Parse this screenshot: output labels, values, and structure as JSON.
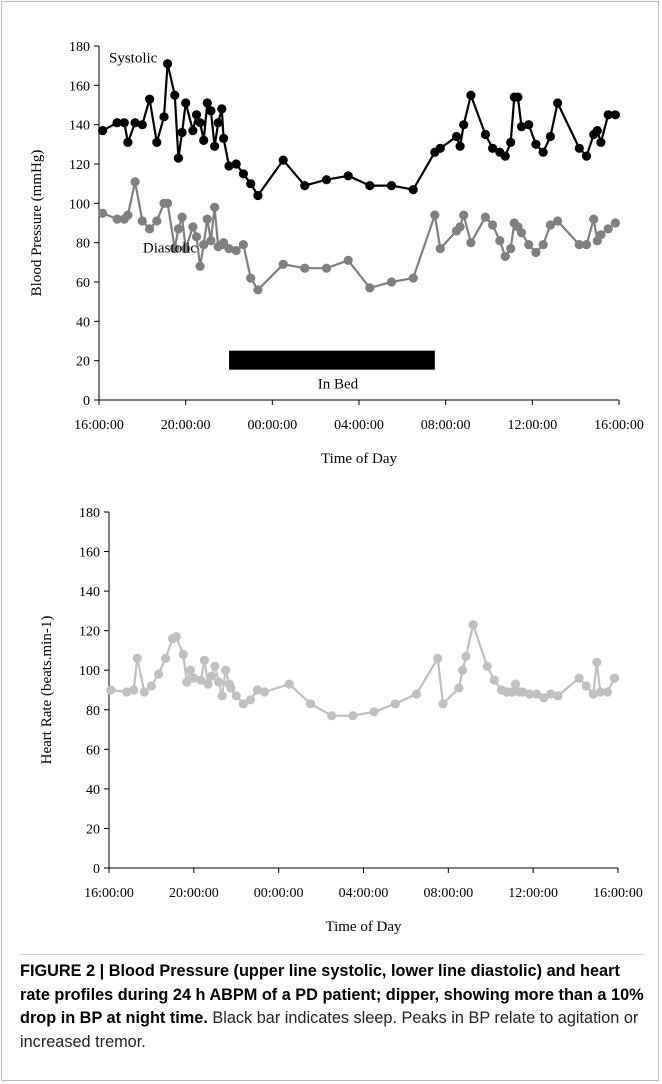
{
  "chart_data": [
    {
      "type": "line",
      "ylabel": "Blood Pressure (mmHg)",
      "xlabel": "Time of Day",
      "ylim": [
        0,
        180
      ],
      "yticks": [
        0,
        20,
        40,
        60,
        80,
        100,
        120,
        140,
        160,
        180
      ],
      "xlim": [
        "16:00:00",
        "16:00:00 (+1 day)"
      ],
      "xticks": [
        "16:00:00",
        "20:00:00",
        "00:00:00",
        "04:00:00",
        "08:00:00",
        "12:00:00",
        "16:00:00"
      ],
      "grid": false,
      "annotations": {
        "systolic": "Systolic",
        "diastolic": "Diastolic",
        "bar": "In Bed"
      },
      "in_bed": {
        "start": "22:00",
        "end": "07:30",
        "level": 20
      },
      "series": [
        {
          "name": "Systolic",
          "color": "#000000",
          "x": [
            "16:10",
            "16:50",
            "17:10",
            "17:20",
            "17:40",
            "18:00",
            "18:20",
            "18:40",
            "19:00",
            "19:10",
            "19:30",
            "19:40",
            "19:50",
            "20:00",
            "20:20",
            "20:30",
            "20:40",
            "20:50",
            "21:00",
            "21:10",
            "21:20",
            "21:30",
            "21:40",
            "21:45",
            "22:00",
            "22:20",
            "22:40",
            "23:00",
            "23:20",
            "00:30",
            "01:30",
            "02:30",
            "03:30",
            "04:30",
            "05:30",
            "06:30",
            "07:30",
            "07:45",
            "08:30",
            "08:40",
            "08:50",
            "09:10",
            "09:50",
            "10:10",
            "10:30",
            "10:45",
            "11:00",
            "11:10",
            "11:20",
            "11:30",
            "11:50",
            "12:10",
            "12:30",
            "12:50",
            "13:10",
            "14:10",
            "14:30",
            "14:50",
            "15:00",
            "15:10",
            "15:30",
            "15:50"
          ],
          "y": [
            137,
            141,
            141,
            131,
            141,
            140,
            153,
            131,
            144,
            171,
            155,
            123,
            136,
            151,
            137,
            145,
            141,
            132,
            151,
            147,
            129,
            141,
            148,
            133,
            119,
            120,
            115,
            110,
            104,
            122,
            109,
            112,
            114,
            109,
            109,
            107,
            126,
            128,
            134,
            129,
            140,
            155,
            135,
            128,
            126,
            124,
            131,
            154,
            154,
            139,
            140,
            130,
            126,
            134,
            151,
            128,
            124,
            135,
            137,
            131,
            145,
            145
          ]
        },
        {
          "name": "Diastolic",
          "color": "#808080",
          "x": [
            "16:10",
            "16:50",
            "17:10",
            "17:20",
            "17:40",
            "18:00",
            "18:20",
            "18:40",
            "19:00",
            "19:10",
            "19:30",
            "19:40",
            "19:50",
            "20:00",
            "20:20",
            "20:30",
            "20:40",
            "20:50",
            "21:00",
            "21:10",
            "21:20",
            "21:30",
            "21:40",
            "21:45",
            "22:00",
            "22:20",
            "22:40",
            "23:00",
            "23:20",
            "00:30",
            "01:30",
            "02:30",
            "03:30",
            "04:30",
            "05:30",
            "06:30",
            "07:30",
            "07:45",
            "08:30",
            "08:40",
            "08:50",
            "09:10",
            "09:50",
            "10:10",
            "10:30",
            "10:45",
            "11:00",
            "11:10",
            "11:20",
            "11:30",
            "11:50",
            "12:10",
            "12:30",
            "12:50",
            "13:10",
            "14:10",
            "14:30",
            "14:50",
            "15:00",
            "15:10",
            "15:30",
            "15:50"
          ],
          "y": [
            95,
            92,
            92,
            94,
            111,
            91,
            87,
            91,
            100,
            100,
            77,
            87,
            93,
            77,
            88,
            83,
            68,
            79,
            92,
            81,
            98,
            78,
            79,
            80,
            77,
            76,
            79,
            62,
            56,
            69,
            67,
            67,
            71,
            57,
            60,
            62,
            94,
            77,
            86,
            88,
            94,
            80,
            93,
            89,
            81,
            73,
            77,
            90,
            88,
            85,
            79,
            75,
            79,
            89,
            91,
            79,
            79,
            92,
            81,
            84,
            87,
            90
          ]
        }
      ]
    },
    {
      "type": "line",
      "ylabel": "Heart Rate (beats.min-1)",
      "xlabel": "Time of Day",
      "ylim": [
        0,
        180
      ],
      "yticks": [
        0,
        20,
        40,
        60,
        80,
        100,
        120,
        140,
        160,
        180
      ],
      "xlim": [
        "16:00:00",
        "16:00:00 (+1 day)"
      ],
      "xticks": [
        "16:00:00",
        "20:00:00",
        "00:00:00",
        "04:00:00",
        "08:00:00",
        "12:00:00",
        "16:00:00"
      ],
      "grid": false,
      "series": [
        {
          "name": "",
          "color": "#c0c0c0",
          "x": [
            "16:05",
            "16:50",
            "17:10",
            "17:20",
            "17:40",
            "18:00",
            "18:20",
            "18:40",
            "19:00",
            "19:10",
            "19:30",
            "19:40",
            "19:50",
            "20:00",
            "20:20",
            "20:30",
            "20:40",
            "20:50",
            "21:00",
            "21:10",
            "21:20",
            "21:30",
            "21:40",
            "21:45",
            "22:00",
            "22:20",
            "22:40",
            "23:00",
            "23:20",
            "00:30",
            "01:30",
            "02:30",
            "03:30",
            "04:30",
            "05:30",
            "06:30",
            "07:30",
            "07:45",
            "08:30",
            "08:40",
            "08:50",
            "09:10",
            "09:50",
            "10:10",
            "10:30",
            "10:45",
            "11:00",
            "11:10",
            "11:20",
            "11:30",
            "11:50",
            "12:10",
            "12:30",
            "12:50",
            "13:10",
            "14:10",
            "14:30",
            "14:50",
            "15:00",
            "15:10",
            "15:30",
            "15:50"
          ],
          "y": [
            90,
            89,
            90,
            106,
            89,
            92,
            98,
            106,
            116,
            117,
            108,
            94,
            100,
            96,
            95,
            105,
            93,
            97,
            102,
            94,
            87,
            100,
            93,
            91,
            87,
            83,
            85,
            90,
            89,
            93,
            83,
            77,
            77,
            79,
            83,
            88,
            106,
            83,
            91,
            100,
            107,
            123,
            102,
            95,
            90,
            89,
            89,
            93,
            89,
            89,
            88,
            88,
            86,
            88,
            87,
            96,
            92,
            88,
            104,
            89,
            89,
            96
          ]
        }
      ]
    }
  ],
  "caption": {
    "bold": "FIGURE 2 | Blood Pressure (upper line systolic, lower line diastolic) and heart rate profiles during 24 h ABPM of a PD patient; dipper, showing more than a 10% drop in BP at night time.",
    "normal": " Black bar indicates sleep. Peaks in BP relate to agitation or increased tremor."
  }
}
